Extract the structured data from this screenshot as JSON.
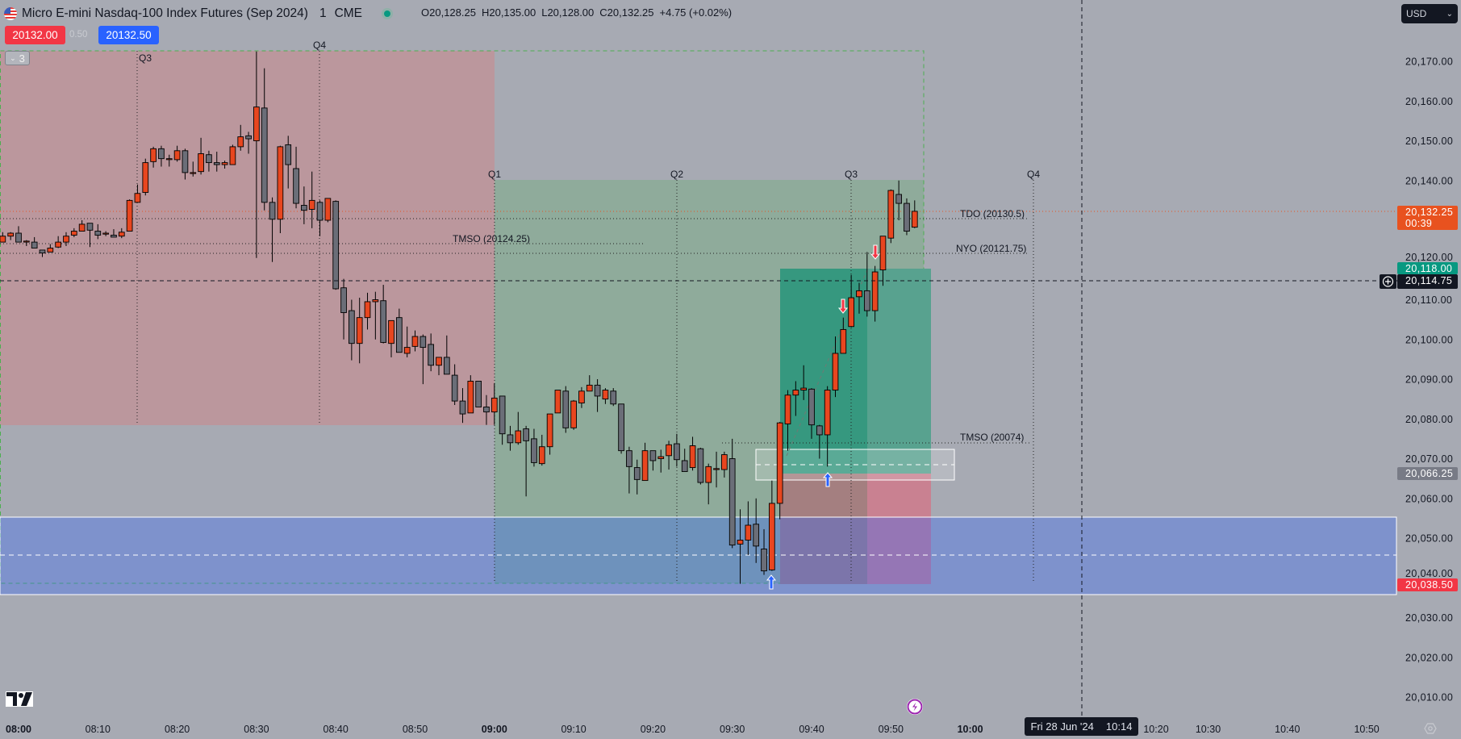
{
  "header": {
    "symbol_title": "Micro E-mini Nasdaq-100 Index Futures (Sep 2024)",
    "interval": "1",
    "exchange": "CME",
    "ohlc": {
      "o_label": "O",
      "o": "20,128.25",
      "h_label": "H",
      "h": "20,135.00",
      "l_label": "L",
      "l": "20,128.00",
      "c_label": "C",
      "c": "20,132.25",
      "change": "+4.75 (+0.02%)"
    },
    "market_status_color": "#089981"
  },
  "trade": {
    "sell_price": "20132.00",
    "spread": "0.50",
    "buy_price": "20132.50",
    "sell_color": "#f23645",
    "buy_color": "#2962ff"
  },
  "indicator_toggle": {
    "icon": "chevron-down-icon",
    "count": "3"
  },
  "currency": {
    "label": "USD",
    "icon": "chevron-down-icon"
  },
  "quarter_labels_top": [
    "Q3",
    "Q4"
  ],
  "quarter_labels": [
    "Q1",
    "Q2",
    "Q3",
    "Q4"
  ],
  "levels": [
    {
      "label": "TDO (20130.5)",
      "price": 20130.5
    },
    {
      "label": "NYO (20121.75)",
      "price": 20121.75
    },
    {
      "label": "TMSO (20124.25)",
      "price": 20124.25
    },
    {
      "label": "TMSO (20074)",
      "price": 20074
    }
  ],
  "price_axis": {
    "ticks": [
      "20,170.00",
      "20,160.00",
      "20,150.00",
      "20,140.00",
      "20,120.00",
      "20,110.00",
      "20,100.00",
      "20,090.00",
      "20,080.00",
      "20,070.00",
      "20,060.00",
      "20,050.00",
      "20,040.00",
      "20,030.00",
      "20,020.00",
      "20,010.00"
    ],
    "badges": [
      {
        "name": "last-price",
        "text": "20,132.25",
        "sub": "00:39",
        "color": "#e8521f"
      },
      {
        "name": "take-profit",
        "text": "20,118.00",
        "color": "#089981"
      },
      {
        "name": "crosshair-price",
        "text": "20,114.75",
        "color": "#131722"
      },
      {
        "name": "entry-price",
        "text": "20,066.25",
        "color": "#787b86"
      },
      {
        "name": "stop-price",
        "text": "20,038.50",
        "color": "#f23645"
      }
    ]
  },
  "time_axis": {
    "ticks": [
      {
        "t": "08:00",
        "bold": true
      },
      {
        "t": "08:10"
      },
      {
        "t": "08:20"
      },
      {
        "t": "08:30"
      },
      {
        "t": "08:40"
      },
      {
        "t": "08:50"
      },
      {
        "t": "09:00",
        "bold": true
      },
      {
        "t": "09:10"
      },
      {
        "t": "09:20"
      },
      {
        "t": "09:30"
      },
      {
        "t": "09:40"
      },
      {
        "t": "09:50"
      },
      {
        "t": "10:00",
        "bold": true
      },
      {
        "t": "10:20"
      },
      {
        "t": "10:30"
      },
      {
        "t": "10:40"
      },
      {
        "t": "10:50"
      }
    ],
    "crosshair_date": "Fri 28 Jun '24",
    "crosshair_time": "10:14"
  },
  "colors": {
    "up": "#e8461f",
    "down": "#6b6e78",
    "background": "#a7aab3"
  },
  "chart_data": {
    "type": "candlestick",
    "columns": [
      "time",
      "open",
      "high",
      "low",
      "close"
    ],
    "candles": [
      [
        "07:58",
        20124.5,
        20127,
        20124.5,
        20126
      ],
      [
        "07:59",
        20126,
        20127,
        20125,
        20126.75
      ],
      [
        "08:00",
        20126.75,
        20128.5,
        20124.5,
        20124.5
      ],
      [
        "08:01",
        20124.75,
        20125,
        20123.5,
        20124.75
      ],
      [
        "08:02",
        20124.5,
        20125.75,
        20123,
        20123
      ],
      [
        "08:03",
        20122.5,
        20122.5,
        20120.75,
        20121.75
      ],
      [
        "08:04",
        20122,
        20124,
        20122,
        20123
      ],
      [
        "08:05",
        20123.25,
        20126,
        20123,
        20124.5
      ],
      [
        "08:06",
        20124.5,
        20127,
        20123.5,
        20126
      ],
      [
        "08:07",
        20126.25,
        20128,
        20125.75,
        20127.25
      ],
      [
        "08:08",
        20127.25,
        20130,
        20127.25,
        20129
      ],
      [
        "08:09",
        20129.25,
        20129.25,
        20123.25,
        20127.5
      ],
      [
        "08:10",
        20127.25,
        20129,
        20125.25,
        20126.25
      ],
      [
        "08:11",
        20126.75,
        20127.25,
        20126,
        20126.75
      ],
      [
        "08:12",
        20126.25,
        20127.75,
        20125.75,
        20125.75
      ],
      [
        "08:13",
        20126,
        20128,
        20125.5,
        20127
      ],
      [
        "08:14",
        20127.25,
        20135.25,
        20127.25,
        20135
      ],
      [
        "08:15",
        20134.5,
        20139,
        20134.5,
        20136.75
      ],
      [
        "08:16",
        20137,
        20145.5,
        20136.25,
        20144.5
      ],
      [
        "08:17",
        20144.75,
        20148.5,
        20143.25,
        20148
      ],
      [
        "08:18",
        20148,
        20148.75,
        20143.5,
        20145.5
      ],
      [
        "08:19",
        20145.5,
        20146.5,
        20143.5,
        20145.5
      ],
      [
        "08:20",
        20145.25,
        20148.75,
        20144.75,
        20147.5
      ],
      [
        "08:21",
        20147.5,
        20148,
        20140.25,
        20142
      ],
      [
        "08:22",
        20142,
        20144.75,
        20141,
        20142
      ],
      [
        "08:23",
        20142.25,
        20150.75,
        20141.5,
        20146.75
      ],
      [
        "08:24",
        20146.5,
        20147.5,
        20142.25,
        20144.5
      ],
      [
        "08:25",
        20144.5,
        20147.25,
        20142.25,
        20144
      ],
      [
        "08:26",
        20144,
        20145,
        20143,
        20144.5
      ],
      [
        "08:27",
        20144,
        20149,
        20144,
        20148.5
      ],
      [
        "08:28",
        20148.5,
        20154,
        20147.5,
        20151
      ],
      [
        "08:29",
        20151.25,
        20152.25,
        20146.75,
        20150.5
      ],
      [
        "08:30",
        20150,
        20172.5,
        20120.5,
        20158.5
      ],
      [
        "08:31",
        20158.25,
        20168.25,
        20132.5,
        20134.5
      ],
      [
        "08:32",
        20134.5,
        20135.75,
        20119.5,
        20130.25
      ],
      [
        "08:33",
        20130.25,
        20148.75,
        20126.75,
        20148.5
      ],
      [
        "08:34",
        20149,
        20151.25,
        20138,
        20144
      ],
      [
        "08:35",
        20143,
        20148.5,
        20133,
        20134.25
      ],
      [
        "08:36",
        20133.75,
        20138.5,
        20129,
        20132.5
      ],
      [
        "08:37",
        20132.75,
        20142.25,
        20128,
        20135
      ],
      [
        "08:38",
        20134.5,
        20135,
        20126,
        20130
      ],
      [
        "08:39",
        20130,
        20135.5,
        20129.5,
        20135.5
      ],
      [
        "08:40",
        20134.75,
        20135,
        20112.5,
        20112.75
      ],
      [
        "08:41",
        20113,
        20115.25,
        20100,
        20106.75
      ],
      [
        "08:42",
        20107.25,
        20110,
        20094.75,
        20099
      ],
      [
        "08:43",
        20099,
        20110.5,
        20094,
        20105.5
      ],
      [
        "08:44",
        20105.5,
        20111.75,
        20102.5,
        20109.5
      ],
      [
        "08:45",
        20109.5,
        20112,
        20100,
        20110
      ],
      [
        "08:46",
        20109.75,
        20113.75,
        20099,
        20099.25
      ],
      [
        "08:47",
        20099,
        20104.75,
        20095.5,
        20104.75
      ],
      [
        "08:48",
        20105.5,
        20107.75,
        20096.75,
        20096.75
      ],
      [
        "08:49",
        20096.5,
        20103.25,
        20095.5,
        20098
      ],
      [
        "08:50",
        20098.25,
        20102.25,
        20097,
        20100.75
      ],
      [
        "08:51",
        20100.75,
        20101.25,
        20088.75,
        20098
      ],
      [
        "08:52",
        20098.75,
        20101.5,
        20092,
        20093.5
      ],
      [
        "08:53",
        20093.5,
        20095.5,
        20091,
        20095.5
      ],
      [
        "08:54",
        20095.5,
        20101,
        20091.25,
        20091.25
      ],
      [
        "08:55",
        20091,
        20093.75,
        20083.5,
        20084.5
      ],
      [
        "08:56",
        20084.5,
        20087.75,
        20079,
        20081.25
      ],
      [
        "08:57",
        20081.5,
        20091,
        20081.5,
        20089.5
      ],
      [
        "08:58",
        20089.5,
        20089.5,
        20083,
        20083
      ],
      [
        "08:59",
        20083,
        20086,
        20078.5,
        20081.75
      ],
      [
        "09:00",
        20081.75,
        20089,
        20078.5,
        20085.25
      ],
      [
        "09:01",
        20085.75,
        20085.75,
        20073.5,
        20076.25
      ],
      [
        "09:02",
        20076,
        20078.25,
        20072,
        20074
      ],
      [
        "09:03",
        20074,
        20081.75,
        20073.5,
        20077
      ],
      [
        "09:04",
        20077.5,
        20078.25,
        20060.5,
        20074.5
      ],
      [
        "09:05",
        20075,
        20077.5,
        20068,
        20069
      ],
      [
        "09:06",
        20068.75,
        20076,
        20068.25,
        20073
      ],
      [
        "09:07",
        20073,
        20081.25,
        20071,
        20081.25
      ],
      [
        "09:08",
        20081.5,
        20087.25,
        20081.5,
        20087.25
      ],
      [
        "09:09",
        20087,
        20088.25,
        20076.5,
        20077.75
      ],
      [
        "09:10",
        20077.75,
        20084.75,
        20077.25,
        20084.5
      ],
      [
        "09:11",
        20084,
        20088,
        20082.75,
        20087
      ],
      [
        "09:12",
        20087,
        20091,
        20087,
        20088.5
      ],
      [
        "09:13",
        20088.5,
        20090,
        20081.75,
        20085.75
      ],
      [
        "09:14",
        20085,
        20087.75,
        20083.75,
        20087.25
      ],
      [
        "09:15",
        20087,
        20087.75,
        20083.25,
        20083.75
      ],
      [
        "09:16",
        20083.75,
        20083.75,
        20071.25,
        20072
      ],
      [
        "09:17",
        20072,
        20073,
        20061.25,
        20068
      ],
      [
        "09:18",
        20067.75,
        20069.75,
        20061,
        20064.75
      ],
      [
        "09:19",
        20064.5,
        20074,
        20064.5,
        20072
      ],
      [
        "09:20",
        20072,
        20072,
        20067,
        20069.5
      ],
      [
        "09:21",
        20070,
        20072.25,
        20066.5,
        20070.5
      ],
      [
        "09:22",
        20070.75,
        20074.5,
        20067.25,
        20073.5
      ],
      [
        "09:23",
        20073.75,
        20076.25,
        20068,
        20069.75
      ],
      [
        "09:24",
        20069.5,
        20072.5,
        20066.75,
        20066.75
      ],
      [
        "09:25",
        20067.75,
        20075.5,
        20067,
        20073.25
      ],
      [
        "09:26",
        20072.5,
        20072.75,
        20063.5,
        20064
      ],
      [
        "09:27",
        20064,
        20068.75,
        20058.5,
        20068
      ],
      [
        "09:28",
        20067.25,
        20071.75,
        20062.75,
        20067.5
      ],
      [
        "09:29",
        20067.25,
        20071.75,
        20065.25,
        20071
      ],
      [
        "09:30",
        20070,
        20075,
        20047.5,
        20048.25
      ],
      [
        "09:31",
        20048.5,
        20057.25,
        20038.5,
        20049.5
      ],
      [
        "09:32",
        20049.5,
        20059.25,
        20045.75,
        20053.25
      ],
      [
        "09:33",
        20053.5,
        20060,
        20043.75,
        20048
      ],
      [
        "09:34",
        20047.25,
        20052.25,
        20040.75,
        20041.75
      ],
      [
        "09:35",
        20042,
        20064.5,
        20041.75,
        20058.75
      ],
      [
        "09:36",
        20058.75,
        20079.25,
        20054.75,
        20079
      ],
      [
        "09:37",
        20078.75,
        20087.25,
        20072,
        20086
      ],
      [
        "09:38",
        20086,
        20089.5,
        20080.75,
        20087.25
      ],
      [
        "09:39",
        20087.25,
        20093.5,
        20084.75,
        20087.75
      ],
      [
        "09:40",
        20087.5,
        20087.75,
        20075,
        20078.5
      ],
      [
        "09:41",
        20078.25,
        20078.5,
        20070,
        20076
      ],
      [
        "09:42",
        20076,
        20088.25,
        20068,
        20087.25
      ],
      [
        "09:43",
        20087.25,
        20100.75,
        20085.5,
        20096.5
      ],
      [
        "09:44",
        20096.5,
        20105.5,
        20096.5,
        20102.5
      ],
      [
        "09:45",
        20103.25,
        20116.25,
        20103,
        20110.5
      ],
      [
        "09:46",
        20110.75,
        20114.25,
        20106.5,
        20112.25
      ],
      [
        "09:47",
        20112.25,
        20122,
        20105.75,
        20107.25
      ],
      [
        "09:48",
        20107.25,
        20118.5,
        20104.5,
        20117
      ],
      [
        "09:49",
        20117.5,
        20126,
        20113.5,
        20126
      ],
      [
        "09:50",
        20125.5,
        20137.75,
        20124.25,
        20137.5
      ],
      [
        "09:51",
        20136.5,
        20140,
        20130,
        20134.25
      ],
      [
        "09:52",
        20134.25,
        20135.5,
        20126.25,
        20127.25
      ],
      [
        "09:53",
        20128.25,
        20135,
        20128,
        20132.25
      ]
    ]
  }
}
